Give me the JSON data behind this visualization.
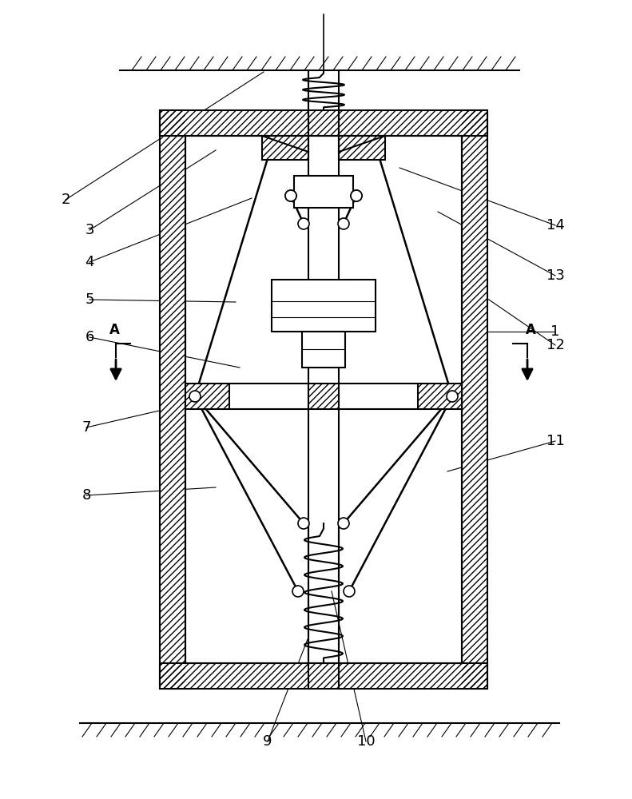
{
  "bg_color": "#ffffff",
  "line_color": "#000000",
  "fig_width": 7.91,
  "fig_height": 10.0,
  "dpi": 100
}
